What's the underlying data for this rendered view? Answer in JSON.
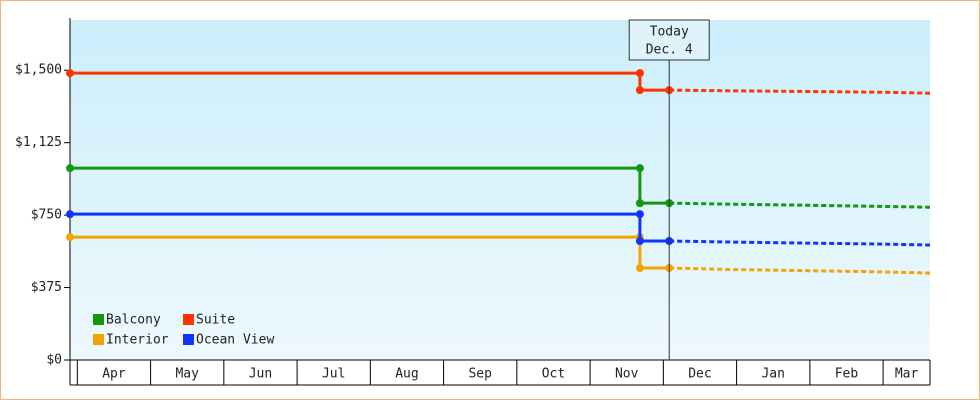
{
  "chart_data": {
    "type": "line",
    "ylim": [
      0,
      1760
    ],
    "yticks": [
      {
        "value": 0,
        "label": "$0"
      },
      {
        "value": 375,
        "label": "$375"
      },
      {
        "value": 750,
        "label": "$750"
      },
      {
        "value": 1125,
        "label": "$1,125"
      },
      {
        "value": 1500,
        "label": "$1,500"
      }
    ],
    "xlim": [
      -0.1,
      11.64
    ],
    "xticks": [
      {
        "value": 0.5,
        "label": "Apr"
      },
      {
        "value": 1.5,
        "label": "May"
      },
      {
        "value": 2.5,
        "label": "Jun"
      },
      {
        "value": 3.5,
        "label": "Jul"
      },
      {
        "value": 4.5,
        "label": "Aug"
      },
      {
        "value": 5.5,
        "label": "Sep"
      },
      {
        "value": 6.5,
        "label": "Oct"
      },
      {
        "value": 7.5,
        "label": "Nov"
      },
      {
        "value": 8.5,
        "label": "Dec"
      },
      {
        "value": 9.5,
        "label": "Jan"
      },
      {
        "value": 10.5,
        "label": "Feb"
      },
      {
        "value": 11.5,
        "label": "Mar"
      }
    ],
    "today": {
      "x": 8.08,
      "label": [
        "Today",
        "Dec. 4"
      ]
    },
    "series": [
      {
        "name": "Balcony",
        "color": "#119911",
        "x": [
          -0.1,
          7.68,
          7.68,
          8.08
        ],
        "values": [
          993,
          993,
          812,
          812
        ],
        "forecast_x": [
          8.08,
          9.0,
          10.0,
          11.0,
          11.64
        ],
        "forecast_values": [
          812,
          806,
          801,
          795,
          791
        ]
      },
      {
        "name": "Suite",
        "color": "#ff3300",
        "x": [
          -0.1,
          7.68,
          7.68,
          8.08
        ],
        "values": [
          1485,
          1485,
          1397,
          1397
        ],
        "forecast_x": [
          8.08,
          9.0,
          10.0,
          11.0,
          11.64
        ],
        "forecast_values": [
          1397,
          1393,
          1390,
          1386,
          1381
        ]
      },
      {
        "name": "Interior",
        "color": "#f5a300",
        "x": [
          -0.1,
          7.68,
          7.68,
          8.08
        ],
        "values": [
          636,
          636,
          476,
          476
        ],
        "forecast_x": [
          8.08,
          9.0,
          10.0,
          11.0,
          11.64
        ],
        "forecast_values": [
          476,
          468,
          462,
          456,
          450
        ]
      },
      {
        "name": "Ocean View",
        "color": "#1133ff",
        "x": [
          -0.1,
          7.68,
          7.68,
          8.08
        ],
        "values": [
          755,
          755,
          616,
          616
        ],
        "forecast_x": [
          8.08,
          9.0,
          10.0,
          11.0,
          11.64
        ],
        "forecast_values": [
          616,
          610,
          605,
          600,
          595
        ]
      }
    ]
  }
}
